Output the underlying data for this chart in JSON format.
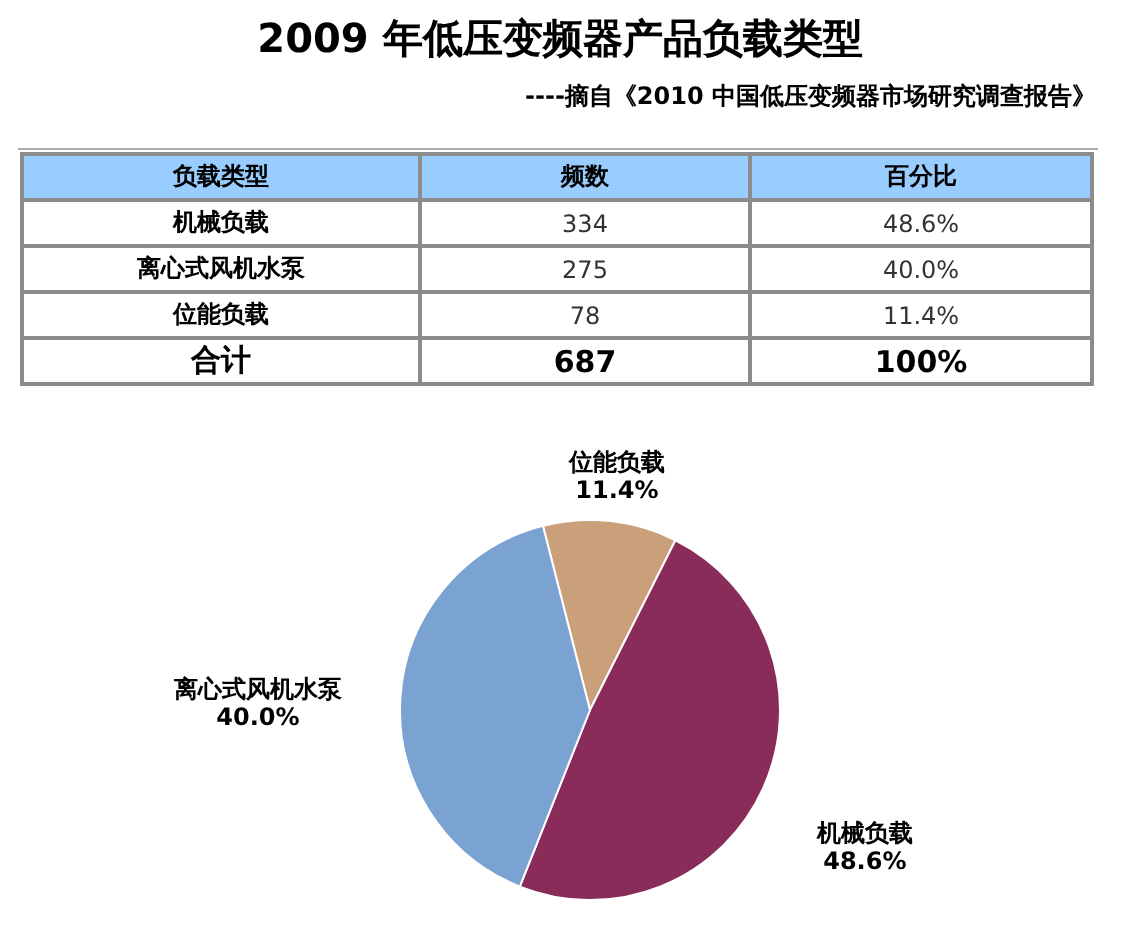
{
  "chart_data": [
    {
      "type": "other",
      "title": "2009 年低压变频器产品负载类型",
      "subtitle": "----摘自《2010 中国低压变频器市场研究调查报告》",
      "xlabel": "负载类型",
      "categories": [
        "机械负载",
        "离心式风机水泵",
        "位能负载"
      ],
      "series": [
        {
          "name": "频数",
          "values": [
            334,
            275,
            78
          ]
        },
        {
          "name": "百分比",
          "values": [
            48.6,
            40.0,
            11.4
          ],
          "value_labels": [
            "48.6%",
            "40.0%",
            "11.4%"
          ]
        }
      ],
      "data_labels": true,
      "totals": [
        "687",
        "100%"
      ],
      "annotations": [
        "合计"
      ]
    },
    {
      "type": "pie",
      "categories": [
        "位能负载",
        "机械负载",
        "离心式风机水泵"
      ],
      "values": [
        11.4,
        48.6,
        40.0
      ],
      "colors": [
        "#c9a07a",
        "#8a2c5a",
        "#7aa3d2"
      ],
      "value_labels": [
        "11.4%",
        "48.6%",
        "40.0%"
      ]
    }
  ]
}
